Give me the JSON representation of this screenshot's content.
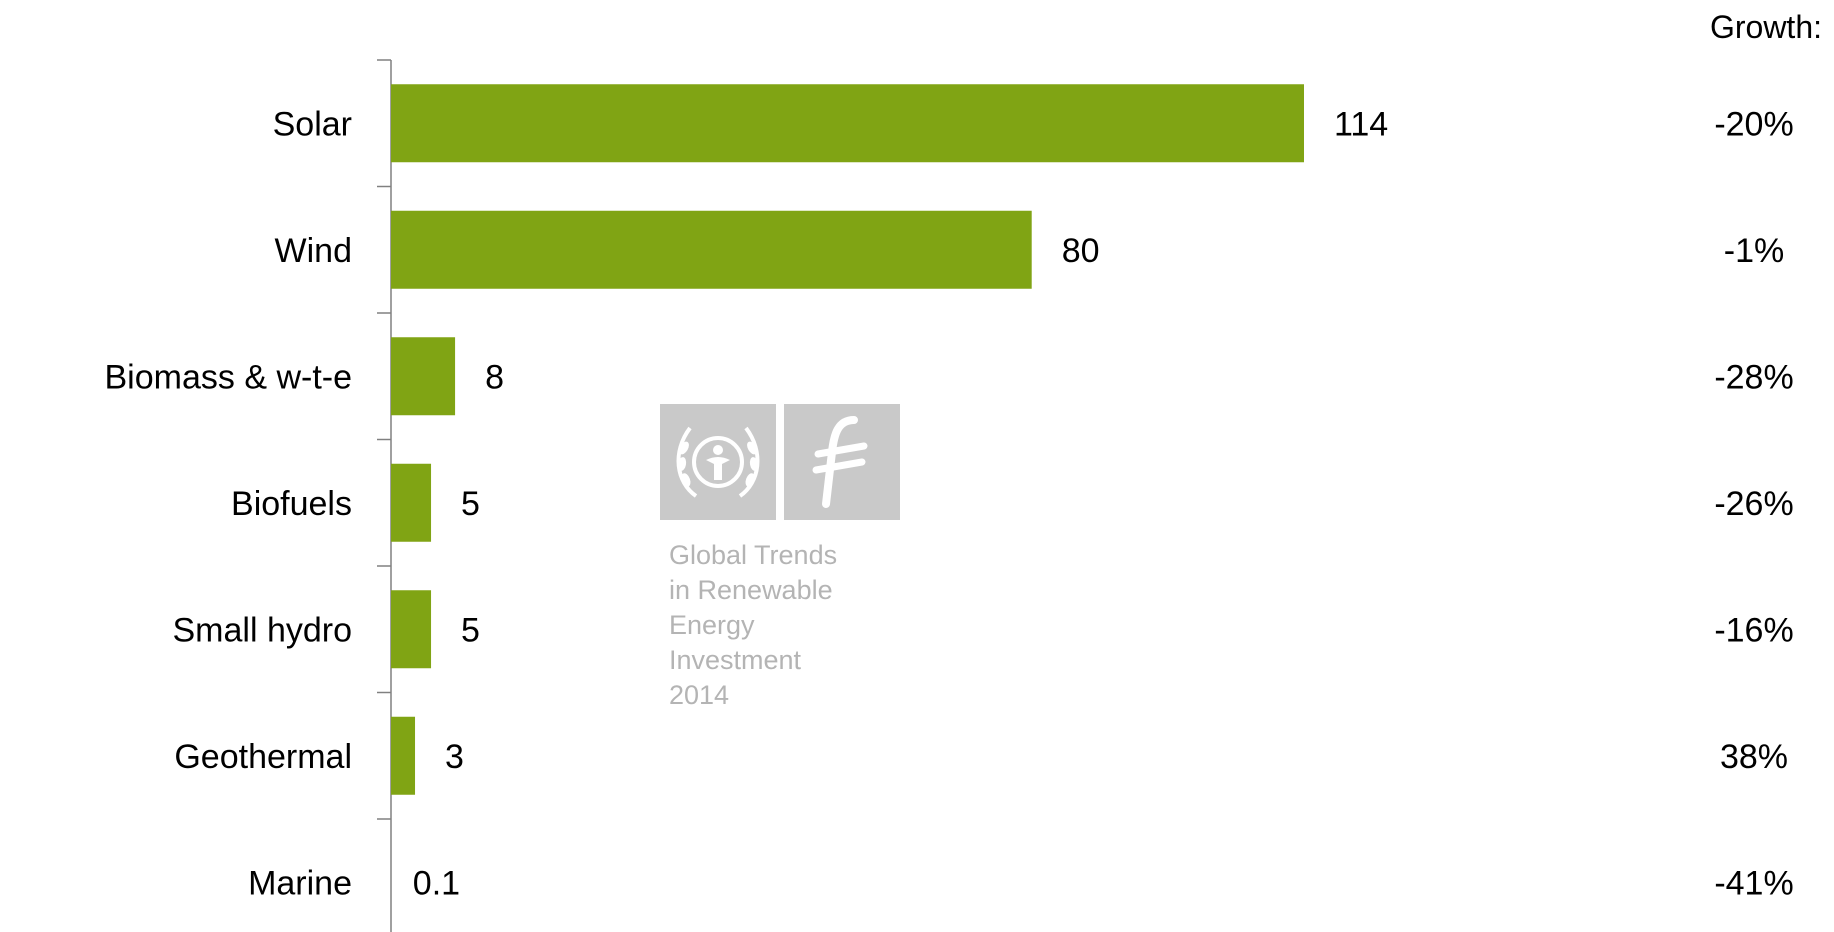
{
  "chart_data": {
    "type": "bar",
    "orientation": "horizontal",
    "categories": [
      "Solar",
      "Wind",
      "Biomass & w-t-e",
      "Biofuels",
      "Small hydro",
      "Geothermal",
      "Marine"
    ],
    "values": [
      114,
      80,
      8,
      5,
      5,
      3,
      0.1
    ],
    "value_labels": [
      "114",
      "80",
      "8",
      "5",
      "5",
      "3",
      "0.1"
    ],
    "growth_header": "Growth:",
    "growth": [
      "-20%",
      "-1%",
      "-28%",
      "-26%",
      "-16%",
      "38%",
      "-41%"
    ],
    "xlim": [
      0,
      114
    ],
    "grid": false,
    "bar_color": "#80a414"
  },
  "watermark": {
    "lines": [
      "Global Trends",
      "in Renewable",
      "Energy",
      "Investment",
      "2014"
    ],
    "icons": [
      "unep-laurel-icon",
      "frankfurt-school-f-icon"
    ],
    "color": "#c9c9c9"
  }
}
